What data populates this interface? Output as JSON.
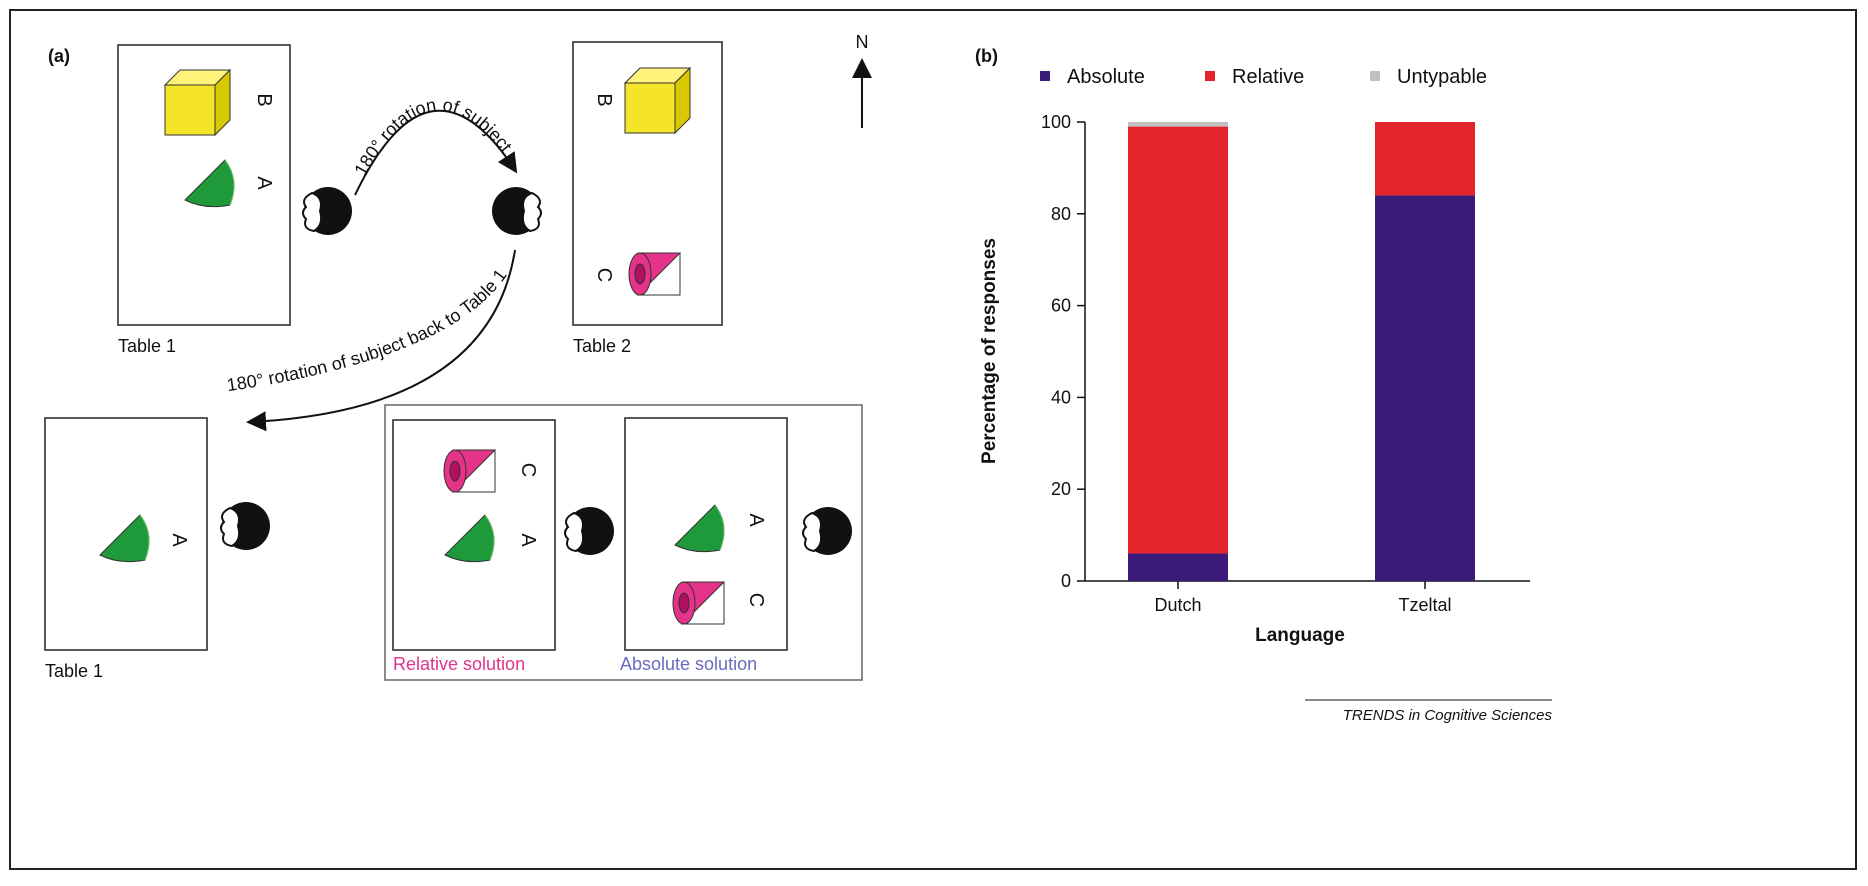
{
  "panel_a": {
    "label": "(a)",
    "north": "N",
    "rotation_1": "180° rotation of subject",
    "rotation_2": "180° rotation of subject back to Table 1",
    "tables": [
      {
        "caption": "Table 1",
        "objects": [
          "B",
          "A"
        ]
      },
      {
        "caption": "Table 2",
        "objects": [
          "B",
          "C"
        ]
      },
      {
        "caption": "Table 1",
        "objects": [
          "A"
        ]
      }
    ],
    "solutions": [
      {
        "caption": "Relative solution",
        "objects": [
          "C",
          "A"
        ]
      },
      {
        "caption": "Absolute solution",
        "objects": [
          "A",
          "C"
        ]
      }
    ]
  },
  "chart_data": {
    "type": "stacked-bar",
    "label": "(b)",
    "categories": [
      "Dutch",
      "Tzeltal"
    ],
    "series": [
      {
        "name": "Absolute",
        "color": "#3b1a7a",
        "values": [
          6,
          84
        ]
      },
      {
        "name": "Relative",
        "color": "#e3242b",
        "values": [
          93,
          16
        ]
      },
      {
        "name": "Untypable",
        "color": "#c0c0c0",
        "values": [
          1,
          0
        ]
      }
    ],
    "ylim": [
      0,
      100
    ],
    "yticks": [
      0,
      20,
      40,
      60,
      80,
      100
    ],
    "y_label": "Percentage of responses",
    "x_label": "Language"
  },
  "footer": "TRENDS in Cognitive Sciences"
}
